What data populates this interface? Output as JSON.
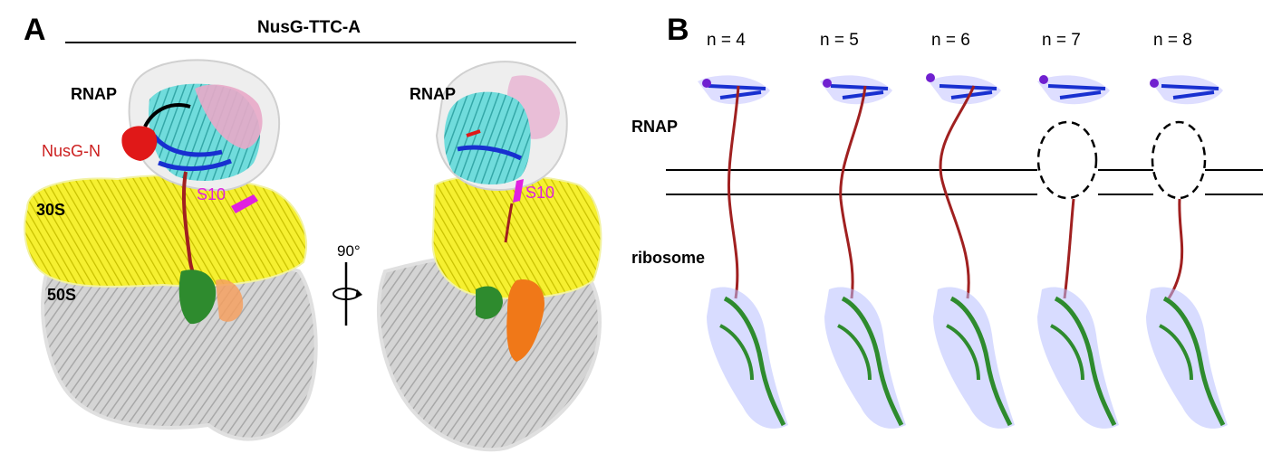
{
  "panel_a": {
    "letter": "A",
    "title": "NusG-TTC-A",
    "left_view": {
      "rnap": "RNAP",
      "nusg_n": "NusG-N",
      "s10": "S10",
      "s30": "30S",
      "s50": "50S"
    },
    "rotation": "90°",
    "right_view": {
      "rnap": "RNAP",
      "s10": "S10"
    }
  },
  "panel_b": {
    "letter": "B",
    "n_labels": [
      "n = 4",
      "n = 5",
      "n = 6",
      "n = 7",
      "n = 8"
    ],
    "side_labels": {
      "rnap": "RNAP",
      "ribosome": "ribosome"
    }
  },
  "colors": {
    "rnap_cyan": "#5fd4d4",
    "rnap_pink": "#e8a8c8",
    "ribosome_30s": "#f0f020",
    "ribosome_50s": "#c8c8c8",
    "nusg_n": "#e01818",
    "s10": "#e020e0",
    "mrna": "#a02020",
    "trna_green": "#2e8b2e",
    "trna_orange": "#f07818",
    "dna_blue": "#1830d0",
    "density_mesh": "#8080ff"
  }
}
